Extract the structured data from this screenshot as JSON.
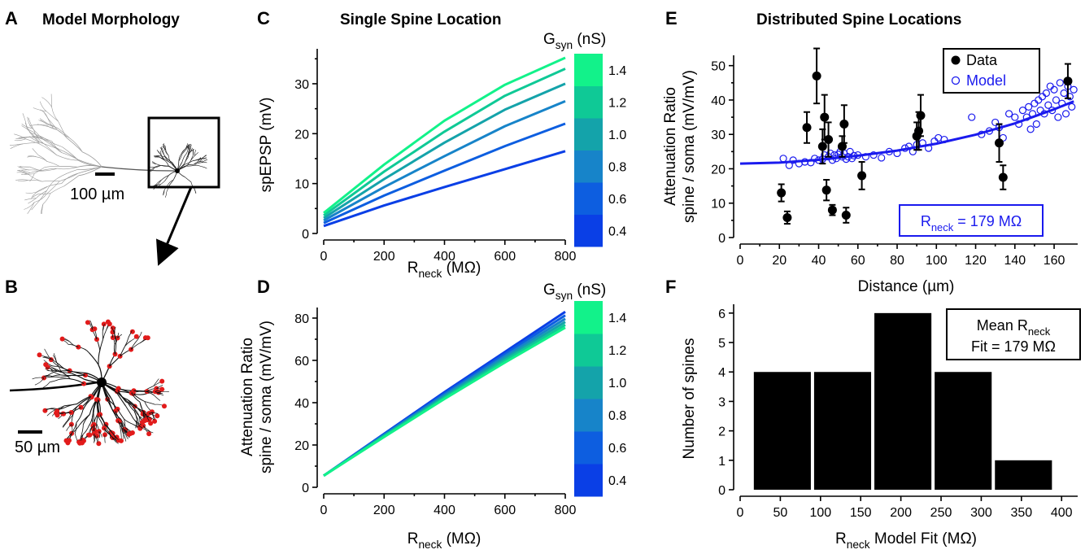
{
  "panels": {
    "A": {
      "letter": "A",
      "title": "Model Morphology",
      "scalebar": "100 µm"
    },
    "B": {
      "letter": "B",
      "scalebar": "50 µm"
    },
    "C": {
      "letter": "C",
      "title": "Single Spine Location"
    },
    "D": {
      "letter": "D"
    },
    "E": {
      "letter": "E",
      "title": "Distributed Spine Locations"
    },
    "F": {
      "letter": "F"
    }
  },
  "colorbar": {
    "label_main": "G",
    "label_sub": "syn",
    "label_unit": " (nS)",
    "ticks": [
      "0.4",
      "0.6",
      "0.8",
      "1.0",
      "1.2",
      "1.4"
    ],
    "colors": [
      "#0a3fe6",
      "#0d5ee0",
      "#1784c9",
      "#14a3aa",
      "#0fc996",
      "#12f28a"
    ]
  },
  "chart_data": [
    {
      "id": "C",
      "type": "line",
      "title": "Single Spine Location",
      "xlabel_main": "R",
      "xlabel_sub": "neck",
      "xlabel_unit": " (MΩ)",
      "ylabel": "spEPSP (mV)",
      "xlim": [
        0,
        800
      ],
      "ylim": [
        0,
        37
      ],
      "xticks": [
        0,
        200,
        400,
        600,
        800
      ],
      "yticks": [
        0,
        10,
        20,
        30
      ],
      "x": [
        0,
        200,
        400,
        600,
        800
      ],
      "series": [
        {
          "gsyn": 0.4,
          "color": "#0a3fe6",
          "values": [
            1.5,
            5.6,
            9.3,
            12.9,
            16.5
          ]
        },
        {
          "gsyn": 0.6,
          "color": "#0d5ee0",
          "values": [
            2.1,
            7.6,
            12.6,
            17.5,
            22.0
          ]
        },
        {
          "gsyn": 0.8,
          "color": "#1784c9",
          "values": [
            2.6,
            9.3,
            15.5,
            21.5,
            26.5
          ]
        },
        {
          "gsyn": 1.0,
          "color": "#14a3aa",
          "values": [
            3.1,
            10.9,
            18.2,
            24.8,
            30.0
          ]
        },
        {
          "gsyn": 1.2,
          "color": "#0fc996",
          "values": [
            3.6,
            12.4,
            20.4,
            27.6,
            33.0
          ]
        },
        {
          "gsyn": 1.4,
          "color": "#12f28a",
          "values": [
            4.1,
            13.8,
            22.6,
            29.8,
            35.2
          ]
        }
      ]
    },
    {
      "id": "D",
      "type": "line",
      "xlabel_main": "R",
      "xlabel_sub": "neck",
      "xlabel_unit": " (MΩ)",
      "ylabel_line1": "Attenuation Ratio",
      "ylabel_line2": "spine / soma (mV/mV)",
      "xlim": [
        0,
        800
      ],
      "ylim": [
        0,
        85
      ],
      "xticks": [
        0,
        200,
        400,
        600,
        800
      ],
      "yticks": [
        0,
        20,
        40,
        60,
        80
      ],
      "x": [
        0,
        200,
        400,
        600,
        800
      ],
      "series": [
        {
          "gsyn": 0.4,
          "color": "#0a3fe6",
          "values": [
            5.5,
            25.3,
            45.0,
            64.0,
            83.0
          ]
        },
        {
          "gsyn": 0.6,
          "color": "#0d5ee0",
          "values": [
            5.5,
            25.0,
            44.3,
            63.0,
            81.3
          ]
        },
        {
          "gsyn": 0.8,
          "color": "#1784c9",
          "values": [
            5.5,
            24.7,
            43.6,
            62.0,
            79.7
          ]
        },
        {
          "gsyn": 1.0,
          "color": "#14a3aa",
          "values": [
            5.5,
            24.4,
            43.0,
            61.0,
            78.2
          ]
        },
        {
          "gsyn": 1.2,
          "color": "#0fc996",
          "values": [
            5.5,
            24.1,
            42.4,
            60.0,
            76.8
          ]
        },
        {
          "gsyn": 1.4,
          "color": "#12f28a",
          "values": [
            5.5,
            23.8,
            41.8,
            59.0,
            75.5
          ]
        }
      ]
    },
    {
      "id": "E",
      "type": "scatter",
      "title": "Distributed Spine Locations",
      "xlabel": "Distance (µm)",
      "ylabel_line1": "Attenuation Ratio",
      "ylabel_line2": "spine / soma (mV/mV)",
      "xlim": [
        0,
        172
      ],
      "ylim": [
        0,
        53
      ],
      "xticks": [
        0,
        20,
        40,
        60,
        80,
        100,
        120,
        140,
        160
      ],
      "yticks": [
        0,
        10,
        20,
        30,
        40,
        50
      ],
      "legend": [
        "Data",
        "Model"
      ],
      "annotation_main": "R",
      "annotation_sub": "neck",
      "annotation_value": " = 179 MΩ",
      "data_points": [
        {
          "x": 21,
          "y": 13,
          "err": 2.5
        },
        {
          "x": 24,
          "y": 5.8,
          "err": 1.8
        },
        {
          "x": 34,
          "y": 32,
          "err": 4.5
        },
        {
          "x": 39,
          "y": 47,
          "err": 8
        },
        {
          "x": 42,
          "y": 26.5,
          "err": 5
        },
        {
          "x": 43,
          "y": 35,
          "err": 6.5
        },
        {
          "x": 44,
          "y": 13.8,
          "err": 3
        },
        {
          "x": 45,
          "y": 28.5,
          "err": 5
        },
        {
          "x": 47,
          "y": 8,
          "err": 1.5
        },
        {
          "x": 52,
          "y": 26.5,
          "err": 3
        },
        {
          "x": 53,
          "y": 33,
          "err": 5.5
        },
        {
          "x": 54,
          "y": 6.5,
          "err": 2.2
        },
        {
          "x": 62,
          "y": 18,
          "err": 4
        },
        {
          "x": 90,
          "y": 29.5,
          "err": 4
        },
        {
          "x": 91,
          "y": 31,
          "err": 5.5
        },
        {
          "x": 92,
          "y": 35.5,
          "err": 6
        },
        {
          "x": 132,
          "y": 27.5,
          "err": 5.5
        },
        {
          "x": 134,
          "y": 17.5,
          "err": 3.5
        },
        {
          "x": 167,
          "y": 45.5,
          "err": 5
        }
      ],
      "model_points": [
        {
          "x": 22,
          "y": 23
        },
        {
          "x": 25,
          "y": 21
        },
        {
          "x": 27,
          "y": 22.5
        },
        {
          "x": 30,
          "y": 21.5
        },
        {
          "x": 33,
          "y": 22
        },
        {
          "x": 36,
          "y": 21.8
        },
        {
          "x": 38,
          "y": 23
        },
        {
          "x": 40,
          "y": 22.5
        },
        {
          "x": 42,
          "y": 22.8
        },
        {
          "x": 43,
          "y": 24
        },
        {
          "x": 45,
          "y": 23.5
        },
        {
          "x": 46,
          "y": 24.5
        },
        {
          "x": 47,
          "y": 22.5
        },
        {
          "x": 48,
          "y": 24
        },
        {
          "x": 49,
          "y": 23
        },
        {
          "x": 50,
          "y": 24.2
        },
        {
          "x": 51,
          "y": 25
        },
        {
          "x": 52,
          "y": 23.5
        },
        {
          "x": 53,
          "y": 24.5
        },
        {
          "x": 54,
          "y": 22.8
        },
        {
          "x": 55,
          "y": 23.5
        },
        {
          "x": 56,
          "y": 25
        },
        {
          "x": 57,
          "y": 23
        },
        {
          "x": 58,
          "y": 23.8
        },
        {
          "x": 60,
          "y": 24
        },
        {
          "x": 64,
          "y": 23.5
        },
        {
          "x": 68,
          "y": 24
        },
        {
          "x": 72,
          "y": 23.2
        },
        {
          "x": 76,
          "y": 25
        },
        {
          "x": 80,
          "y": 24.5
        },
        {
          "x": 84,
          "y": 26
        },
        {
          "x": 86,
          "y": 26.5
        },
        {
          "x": 88,
          "y": 25
        },
        {
          "x": 90,
          "y": 27
        },
        {
          "x": 93,
          "y": 27.5
        },
        {
          "x": 96,
          "y": 26
        },
        {
          "x": 99,
          "y": 28
        },
        {
          "x": 101,
          "y": 29
        },
        {
          "x": 104,
          "y": 28.5
        },
        {
          "x": 118,
          "y": 35
        },
        {
          "x": 123,
          "y": 30
        },
        {
          "x": 127,
          "y": 31
        },
        {
          "x": 130,
          "y": 33.5
        },
        {
          "x": 132,
          "y": 32
        },
        {
          "x": 134,
          "y": 29
        },
        {
          "x": 137,
          "y": 36
        },
        {
          "x": 140,
          "y": 35
        },
        {
          "x": 142,
          "y": 33
        },
        {
          "x": 144,
          "y": 37
        },
        {
          "x": 146,
          "y": 35
        },
        {
          "x": 147,
          "y": 38
        },
        {
          "x": 148,
          "y": 31.5
        },
        {
          "x": 149,
          "y": 36
        },
        {
          "x": 150,
          "y": 39
        },
        {
          "x": 151,
          "y": 33
        },
        {
          "x": 152,
          "y": 40
        },
        {
          "x": 153,
          "y": 37
        },
        {
          "x": 154,
          "y": 41
        },
        {
          "x": 155,
          "y": 36
        },
        {
          "x": 156,
          "y": 42
        },
        {
          "x": 157,
          "y": 38.5
        },
        {
          "x": 158,
          "y": 44
        },
        {
          "x": 159,
          "y": 37
        },
        {
          "x": 160,
          "y": 43
        },
        {
          "x": 161,
          "y": 40
        },
        {
          "x": 162,
          "y": 35
        },
        {
          "x": 163,
          "y": 45
        },
        {
          "x": 164,
          "y": 39
        },
        {
          "x": 165,
          "y": 42
        },
        {
          "x": 166,
          "y": 36
        },
        {
          "x": 167,
          "y": 44
        },
        {
          "x": 168,
          "y": 41
        },
        {
          "x": 169,
          "y": 38
        },
        {
          "x": 170,
          "y": 43
        }
      ],
      "fit_curve": {
        "x": [
          0,
          20,
          40,
          60,
          80,
          100,
          120,
          140,
          160,
          170
        ],
        "y": [
          21.5,
          21.8,
          22.6,
          23.8,
          25.3,
          27.3,
          29.9,
          33.2,
          37.3,
          39.6
        ]
      }
    },
    {
      "id": "F",
      "type": "bar",
      "xlabel_main": "R",
      "xlabel_sub": "neck",
      "xlabel_unit": " Model Fit (MΩ)",
      "ylabel": "Number of spines",
      "xlim": [
        0,
        420
      ],
      "ylim": [
        0,
        6.3
      ],
      "xticks": [
        0,
        50,
        100,
        150,
        200,
        250,
        300,
        350,
        400
      ],
      "yticks": [
        0,
        1,
        2,
        3,
        4,
        5,
        6
      ],
      "bins": [
        [
          15,
          90
        ],
        [
          90,
          165
        ],
        [
          165,
          240
        ],
        [
          240,
          315
        ],
        [
          315,
          390
        ]
      ],
      "values": [
        4,
        4,
        6,
        4,
        1
      ],
      "annotation_line1_main": "Mean R",
      "annotation_line1_sub": "neck",
      "annotation_line2": "Fit = 179 MΩ"
    }
  ]
}
